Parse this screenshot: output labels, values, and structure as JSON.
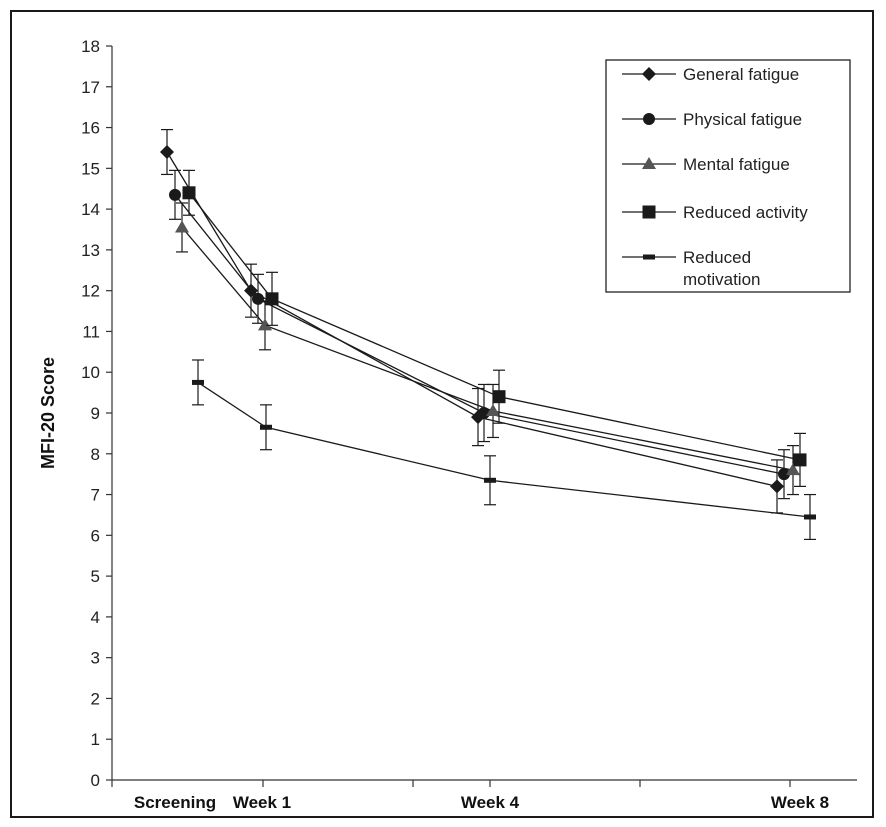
{
  "chart_data": {
    "type": "line",
    "title": "",
    "xlabel": "",
    "ylabel": "MFI-20 Score",
    "ylim": [
      0,
      18
    ],
    "yticks": [
      "0",
      "1",
      "2",
      "3",
      "4",
      "5",
      "6",
      "7",
      "8",
      "9",
      "10",
      "11",
      "12",
      "13",
      "14",
      "15",
      "16",
      "17",
      "18"
    ],
    "categories": [
      "Screening",
      "Week 1",
      "Week 4",
      "Week 8"
    ],
    "legend_position": "top-right",
    "grid": false,
    "colors": {
      "series": "#1a1a1a",
      "axis": "#333333"
    },
    "series": [
      {
        "name": "General fatigue",
        "marker": "diamond",
        "values": [
          15.4,
          12.0,
          8.9,
          7.2
        ],
        "errors": [
          0.55,
          0.65,
          0.7,
          0.65
        ]
      },
      {
        "name": "Physical fatigue",
        "marker": "circle",
        "values": [
          14.35,
          11.8,
          9.0,
          7.5
        ],
        "errors": [
          0.6,
          0.6,
          0.7,
          0.6
        ]
      },
      {
        "name": "Mental fatigue",
        "marker": "triangle",
        "values": [
          13.55,
          11.15,
          9.05,
          7.6
        ],
        "errors": [
          0.6,
          0.6,
          0.65,
          0.6
        ]
      },
      {
        "name": "Reduced activity",
        "marker": "square",
        "values": [
          14.4,
          11.8,
          9.4,
          7.85
        ],
        "errors": [
          0.55,
          0.65,
          0.65,
          0.65
        ]
      },
      {
        "name": "Reduced\nmotivation",
        "marker": "dash",
        "values": [
          9.75,
          8.65,
          7.35,
          6.45
        ],
        "errors": [
          0.55,
          0.55,
          0.6,
          0.55
        ]
      }
    ]
  }
}
